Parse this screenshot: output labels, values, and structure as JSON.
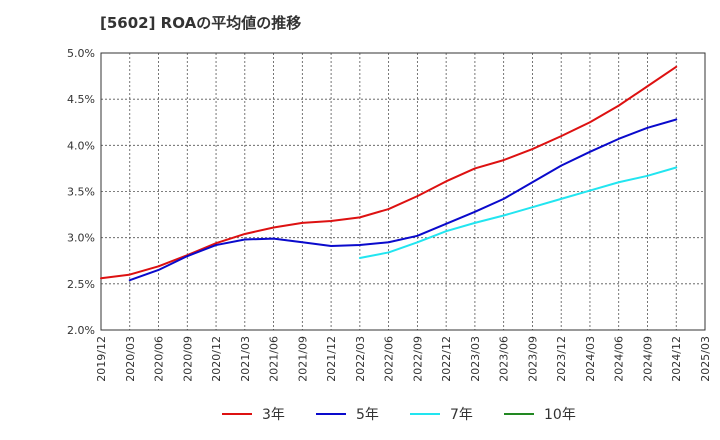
{
  "chart_data": {
    "type": "line",
    "title": "[5602]  ROAの平均値の推移",
    "xlabel": "",
    "ylabel": "",
    "x_ticks": [
      "2019/12",
      "2020/03",
      "2020/06",
      "2020/09",
      "2020/12",
      "2021/03",
      "2021/06",
      "2021/09",
      "2021/12",
      "2022/03",
      "2022/06",
      "2022/09",
      "2022/12",
      "2023/03",
      "2023/06",
      "2023/09",
      "2023/12",
      "2024/03",
      "2024/06",
      "2024/09",
      "2024/12",
      "2025/03"
    ],
    "y_ticks": [
      "2.0%",
      "2.5%",
      "3.0%",
      "3.5%",
      "4.0%",
      "4.5%",
      "5.0%"
    ],
    "ylim": [
      2.0,
      5.0
    ],
    "grid": true,
    "legend_position": "bottom",
    "series": [
      {
        "name": "3年",
        "color": "#dd1111",
        "x": [
          "2019/12",
          "2020/03",
          "2020/06",
          "2020/09",
          "2020/12",
          "2021/03",
          "2021/06",
          "2021/09",
          "2021/12",
          "2022/03",
          "2022/06",
          "2022/09",
          "2022/12",
          "2023/03",
          "2023/06",
          "2023/09",
          "2023/12",
          "2024/03",
          "2024/06",
          "2024/09",
          "2024/12"
        ],
        "values": [
          2.56,
          2.6,
          2.69,
          2.81,
          2.94,
          3.04,
          3.11,
          3.16,
          3.18,
          3.22,
          3.31,
          3.45,
          3.61,
          3.75,
          3.84,
          3.96,
          4.1,
          4.25,
          4.43,
          4.64,
          4.85
        ]
      },
      {
        "name": "5年",
        "color": "#0a0acc",
        "x": [
          "2020/03",
          "2020/06",
          "2020/09",
          "2020/12",
          "2021/03",
          "2021/06",
          "2021/09",
          "2021/12",
          "2022/03",
          "2022/06",
          "2022/09",
          "2022/12",
          "2023/03",
          "2023/06",
          "2023/09",
          "2023/12",
          "2024/03",
          "2024/06",
          "2024/09",
          "2024/12"
        ],
        "values": [
          2.54,
          2.65,
          2.8,
          2.92,
          2.98,
          2.99,
          2.95,
          2.91,
          2.92,
          2.95,
          3.02,
          3.15,
          3.28,
          3.42,
          3.6,
          3.78,
          3.93,
          4.07,
          4.19,
          4.28
        ]
      },
      {
        "name": "7年",
        "color": "#22e5f0",
        "x": [
          "2022/03",
          "2022/06",
          "2022/09",
          "2022/12",
          "2023/03",
          "2023/06",
          "2023/09",
          "2023/12",
          "2024/03",
          "2024/06",
          "2024/09",
          "2024/12"
        ],
        "values": [
          2.78,
          2.84,
          2.95,
          3.07,
          3.16,
          3.24,
          3.33,
          3.42,
          3.51,
          3.6,
          3.67,
          3.76
        ]
      },
      {
        "name": "10年",
        "color": "#228822",
        "x": [],
        "values": []
      }
    ]
  }
}
